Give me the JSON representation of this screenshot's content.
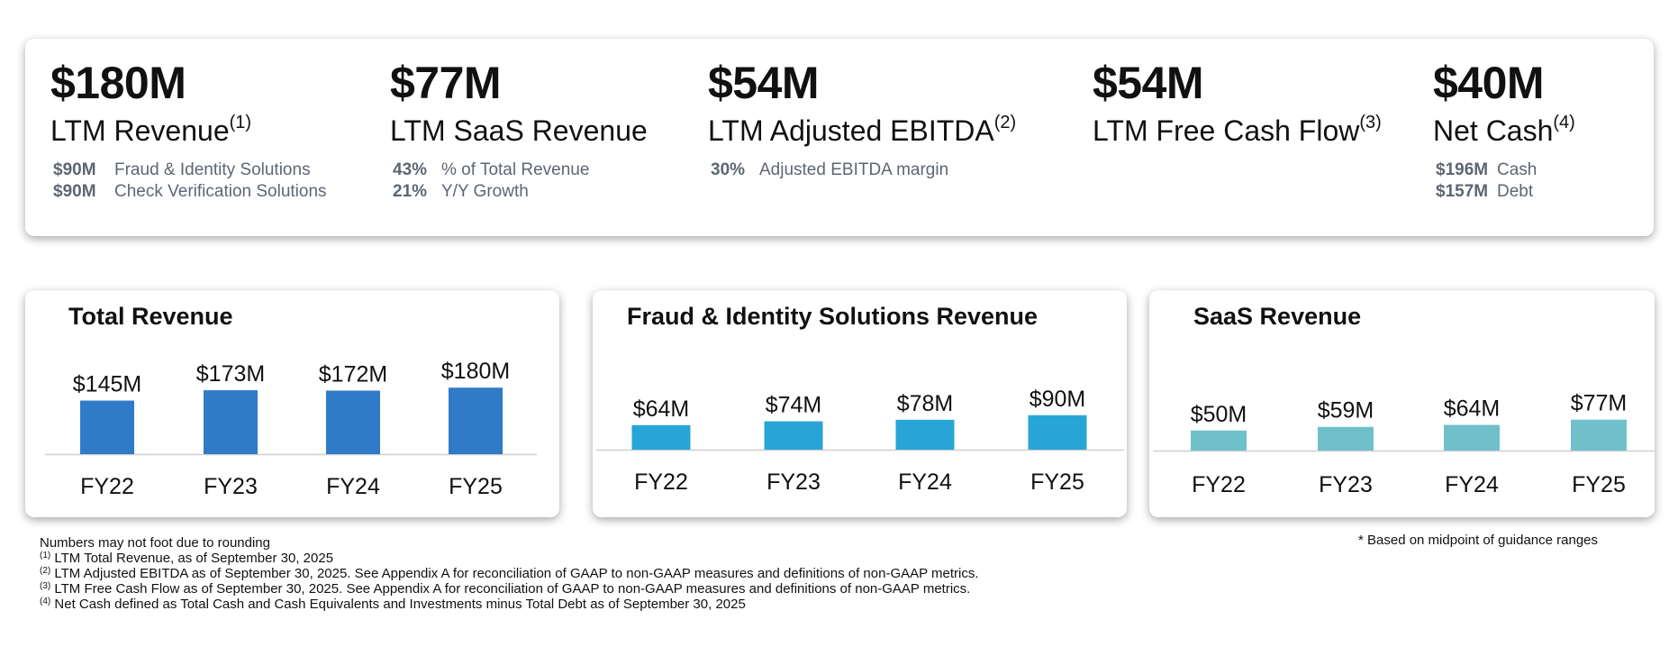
{
  "kpis": [
    {
      "value": "$180M",
      "label": "LTM Revenue",
      "sup": "(1)",
      "details": [
        {
          "value": "$90M",
          "text": "Fraud & Identity Solutions"
        },
        {
          "value": "$90M",
          "text": "Check Verification Solutions"
        }
      ]
    },
    {
      "value": "$77M",
      "label": "LTM SaaS Revenue",
      "sup": "",
      "details": [
        {
          "value": "43%",
          "text": "% of Total Revenue"
        },
        {
          "value": "21%",
          "text": "Y/Y Growth"
        }
      ]
    },
    {
      "value": "$54M",
      "label": "LTM Adjusted EBITDA",
      "sup": "(2)",
      "details": [
        {
          "value": "30%",
          "text": "Adjusted EBITDA margin"
        }
      ]
    },
    {
      "value": "$54M",
      "label": "LTM Free Cash Flow",
      "sup": "(3)",
      "details": []
    },
    {
      "value": "$40M",
      "label": "Net Cash",
      "sup": "(4)",
      "details": [
        {
          "value": "$196M",
          "text": "Cash"
        },
        {
          "value": "$157M",
          "text": "Debt"
        }
      ]
    }
  ],
  "colors": {
    "total": "#2f7bc8",
    "fraud": "#27a5d6",
    "saas": "#6fc0ca",
    "axis": "#cfcfcf"
  },
  "chart_data": [
    {
      "type": "bar",
      "title": "Total Revenue",
      "categories": [
        "FY22",
        "FY23",
        "FY24",
        "FY25"
      ],
      "values": [
        145,
        173,
        172,
        180
      ],
      "data_labels": [
        "$145M",
        "$173M",
        "$172M",
        "$180M"
      ],
      "unit": "$M"
    },
    {
      "type": "bar",
      "title": "Fraud & Identity Solutions Revenue",
      "categories": [
        "FY22",
        "FY23",
        "FY24",
        "FY25"
      ],
      "values": [
        64,
        74,
        78,
        90
      ],
      "data_labels": [
        "$64M",
        "$74M",
        "$78M",
        "$90M"
      ],
      "unit": "$M"
    },
    {
      "type": "bar",
      "title": "SaaS Revenue",
      "categories": [
        "FY22",
        "FY23",
        "FY24",
        "FY25"
      ],
      "values": [
        50,
        59,
        64,
        77
      ],
      "data_labels": [
        "$50M",
        "$59M",
        "$64M",
        "$77M"
      ],
      "unit": "$M"
    }
  ],
  "footnotes": {
    "rounding": "Numbers may not foot due to rounding",
    "notes": [
      {
        "sup": "(1)",
        "text": "LTM Total Revenue, as of September 30, 2025"
      },
      {
        "sup": "(2)",
        "text": "LTM Adjusted EBITDA as of September 30, 2025. See Appendix A for reconciliation of GAAP to non-GAAP measures and definitions of non-GAAP metrics."
      },
      {
        "sup": "(3)",
        "text": "LTM Free Cash Flow as of September 30, 2025. See Appendix A for reconciliation of GAAP to non-GAAP measures and definitions of non-GAAP metrics."
      },
      {
        "sup": "(4)",
        "text": "Net Cash defined as Total Cash and Cash Equivalents and Investments minus Total Debt as of September 30, 2025"
      }
    ],
    "guidance": "* Based on midpoint of guidance ranges"
  }
}
